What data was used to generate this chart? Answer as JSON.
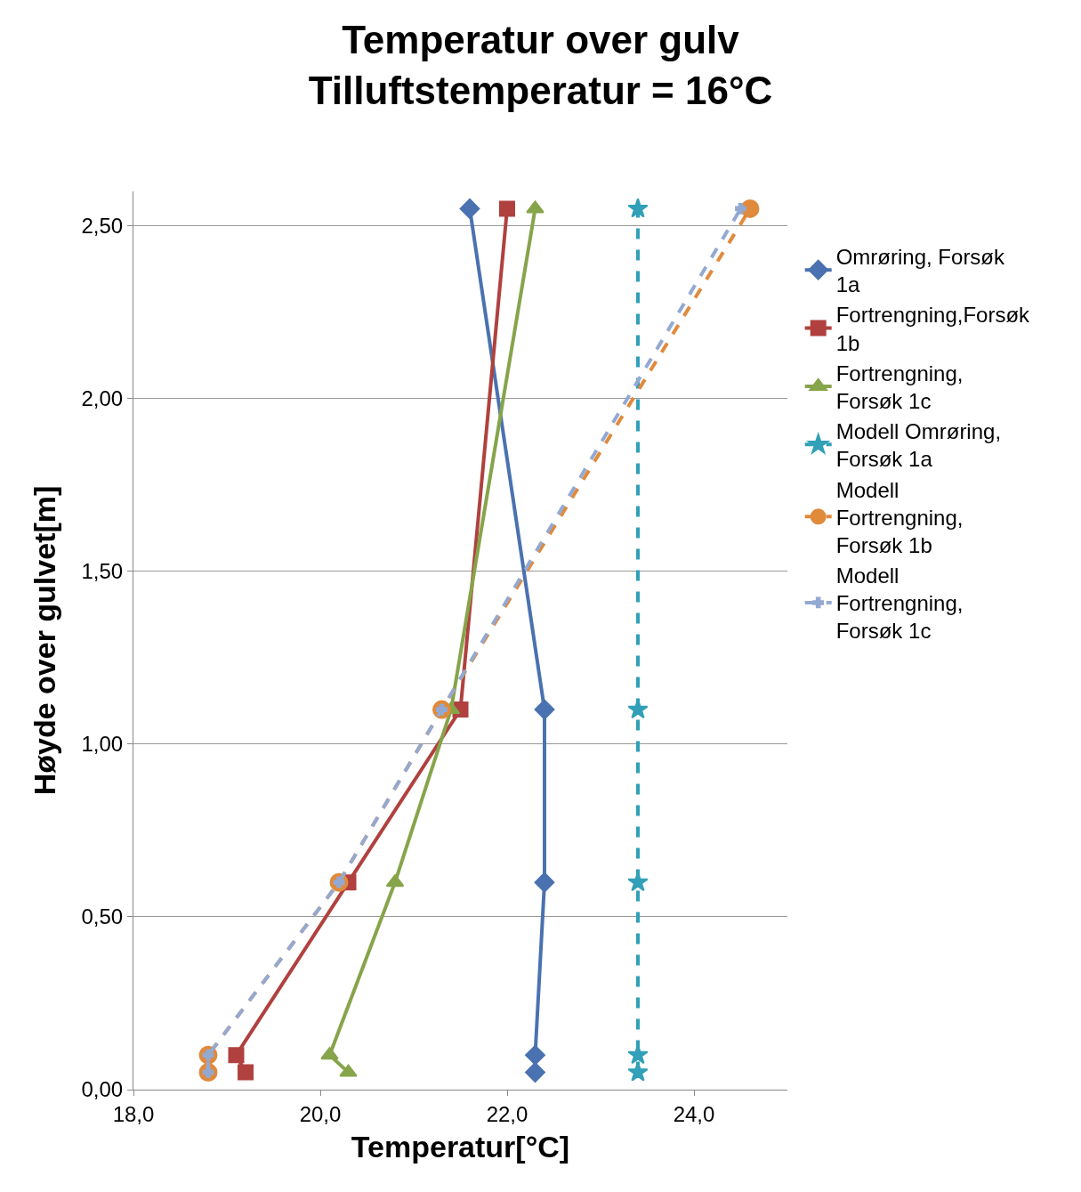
{
  "chart_data": {
    "type": "line",
    "title": "Temperatur over gulv",
    "subtitle": "Tilluftstemperatur = 16°C",
    "xlabel": "Temperatur[°C]",
    "ylabel": "Høyde over gulvet[m]",
    "series": [
      {
        "name": "Omrøring, Forsøk 1a",
        "color": "#4a72b0",
        "marker": "diamond",
        "line_style": "solid",
        "x": [
          22.3,
          22.3,
          22.4,
          22.4,
          21.6
        ],
        "values": [
          0.05,
          0.1,
          0.6,
          1.1,
          2.55
        ]
      },
      {
        "name": "Fortrengning,Forsøk 1b",
        "color": "#b0413e",
        "marker": "square",
        "line_style": "solid",
        "x": [
          19.2,
          19.1,
          20.3,
          21.5,
          22.0
        ],
        "values": [
          0.05,
          0.1,
          0.6,
          1.1,
          2.55
        ]
      },
      {
        "name": "Fortrengning, Forsøk 1c",
        "color": "#86a44a",
        "marker": "triangle",
        "line_style": "solid",
        "x": [
          20.3,
          20.1,
          20.8,
          21.4,
          22.3
        ],
        "values": [
          0.05,
          0.1,
          0.6,
          1.1,
          2.55
        ]
      },
      {
        "name": "Modell Omrøring, Forsøk 1a",
        "color": "#31a0b8",
        "marker": "star",
        "line_style": "dashed",
        "x": [
          23.4,
          23.4,
          23.4,
          23.4,
          23.4
        ],
        "values": [
          0.05,
          0.1,
          0.6,
          1.1,
          2.55
        ]
      },
      {
        "name": "Modell Fortrengning, Forsøk 1b",
        "color": "#e08a3c",
        "marker": "circle",
        "line_style": "dashed",
        "x": [
          18.8,
          18.8,
          20.2,
          21.3,
          24.6
        ],
        "values": [
          0.05,
          0.1,
          0.6,
          1.1,
          2.55
        ]
      },
      {
        "name": "Modell Fortrengning, Forsøk 1c",
        "color": "#93a9d2",
        "marker": "cross",
        "line_style": "dashed",
        "x": [
          18.8,
          18.8,
          20.2,
          21.3,
          24.5
        ],
        "values": [
          0.05,
          0.1,
          0.6,
          1.1,
          2.55
        ]
      }
    ],
    "xlim": [
      18.0,
      25.0
    ],
    "xticks": [
      {
        "value": 18,
        "label": "18,0"
      },
      {
        "value": 20,
        "label": "20,0"
      },
      {
        "value": 22,
        "label": "22,0"
      },
      {
        "value": 24,
        "label": "24,0"
      }
    ],
    "ylim": [
      0,
      2.6
    ],
    "yticks": [
      {
        "value": 0,
        "label": "0,00"
      },
      {
        "value": 0.5,
        "label": "0,50"
      },
      {
        "value": 1,
        "label": "1,00"
      },
      {
        "value": 1.5,
        "label": "1,50"
      },
      {
        "value": 2,
        "label": "2,00"
      },
      {
        "value": 2.5,
        "label": "2,50"
      }
    ],
    "grid": "y",
    "legend": "right"
  }
}
